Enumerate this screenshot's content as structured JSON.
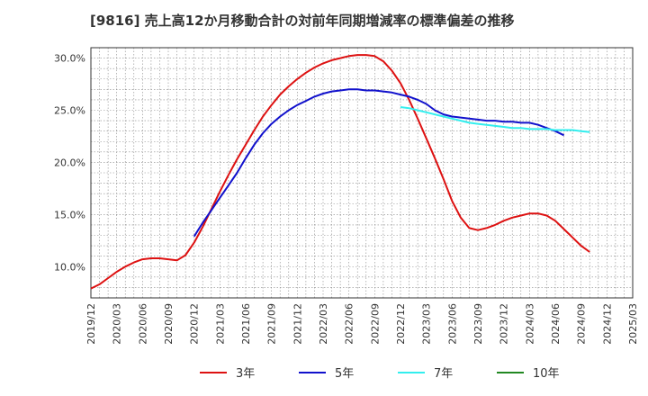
{
  "chart_data": {
    "type": "line",
    "title": "[9816]  売上高12か月移動合計の対前年同期増減率の標準偏差の推移",
    "xlabel": "",
    "ylabel": "",
    "ylim": [
      7.0,
      31.0
    ],
    "y_ticks": [
      10.0,
      15.0,
      20.0,
      25.0,
      30.0
    ],
    "y_tick_labels": [
      "10.0%",
      "15.0%",
      "20.0%",
      "25.0%",
      "30.0%"
    ],
    "x_tick_labels": [
      "2019/12",
      "2020/03",
      "2020/06",
      "2020/09",
      "2020/12",
      "2021/03",
      "2021/06",
      "2021/09",
      "2021/12",
      "2022/03",
      "2022/06",
      "2022/09",
      "2022/12",
      "2023/03",
      "2023/06",
      "2023/09",
      "2023/12",
      "2024/03",
      "2024/06",
      "2024/09",
      "2024/12",
      "2025/03"
    ],
    "grid": true,
    "legend_position": "bottom",
    "series": [
      {
        "name": "3年",
        "color": "#dd1111",
        "points": [
          [
            "2019/12",
            7.9
          ],
          [
            "2020/01",
            8.3
          ],
          [
            "2020/02",
            8.9
          ],
          [
            "2020/03",
            9.5
          ],
          [
            "2020/04",
            10.0
          ],
          [
            "2020/05",
            10.4
          ],
          [
            "2020/06",
            10.7
          ],
          [
            "2020/07",
            10.8
          ],
          [
            "2020/08",
            10.8
          ],
          [
            "2020/09",
            10.7
          ],
          [
            "2020/10",
            10.6
          ],
          [
            "2020/11",
            11.1
          ],
          [
            "2020/12",
            12.3
          ],
          [
            "2021/01",
            13.8
          ],
          [
            "2021/02",
            15.5
          ],
          [
            "2021/03",
            17.2
          ],
          [
            "2021/04",
            18.8
          ],
          [
            "2021/05",
            20.3
          ],
          [
            "2021/06",
            21.7
          ],
          [
            "2021/07",
            23.1
          ],
          [
            "2021/08",
            24.4
          ],
          [
            "2021/09",
            25.5
          ],
          [
            "2021/10",
            26.5
          ],
          [
            "2021/11",
            27.3
          ],
          [
            "2021/12",
            28.0
          ],
          [
            "2022/01",
            28.6
          ],
          [
            "2022/02",
            29.1
          ],
          [
            "2022/03",
            29.5
          ],
          [
            "2022/04",
            29.8
          ],
          [
            "2022/05",
            30.0
          ],
          [
            "2022/06",
            30.2
          ],
          [
            "2022/07",
            30.3
          ],
          [
            "2022/08",
            30.3
          ],
          [
            "2022/09",
            30.2
          ],
          [
            "2022/10",
            29.7
          ],
          [
            "2022/11",
            28.8
          ],
          [
            "2022/12",
            27.6
          ],
          [
            "2023/01",
            26.0
          ],
          [
            "2023/02",
            24.2
          ],
          [
            "2023/03",
            22.3
          ],
          [
            "2023/04",
            20.4
          ],
          [
            "2023/05",
            18.4
          ],
          [
            "2023/06",
            16.3
          ],
          [
            "2023/07",
            14.7
          ],
          [
            "2023/08",
            13.7
          ],
          [
            "2023/09",
            13.5
          ],
          [
            "2023/10",
            13.7
          ],
          [
            "2023/11",
            14.0
          ],
          [
            "2023/12",
            14.4
          ],
          [
            "2024/01",
            14.7
          ],
          [
            "2024/02",
            14.9
          ],
          [
            "2024/03",
            15.1
          ],
          [
            "2024/04",
            15.1
          ],
          [
            "2024/05",
            14.9
          ],
          [
            "2024/06",
            14.4
          ],
          [
            "2024/07",
            13.6
          ],
          [
            "2024/08",
            12.8
          ],
          [
            "2024/09",
            12.0
          ],
          [
            "2024/10",
            11.4
          ]
        ]
      },
      {
        "name": "5年",
        "color": "#1111cc",
        "points": [
          [
            "2020/12",
            12.9
          ],
          [
            "2021/01",
            14.2
          ],
          [
            "2021/02",
            15.4
          ],
          [
            "2021/03",
            16.6
          ],
          [
            "2021/04",
            17.8
          ],
          [
            "2021/05",
            19.0
          ],
          [
            "2021/06",
            20.4
          ],
          [
            "2021/07",
            21.7
          ],
          [
            "2021/08",
            22.8
          ],
          [
            "2021/09",
            23.7
          ],
          [
            "2021/10",
            24.4
          ],
          [
            "2021/11",
            25.0
          ],
          [
            "2021/12",
            25.5
          ],
          [
            "2022/01",
            25.9
          ],
          [
            "2022/02",
            26.3
          ],
          [
            "2022/03",
            26.6
          ],
          [
            "2022/04",
            26.8
          ],
          [
            "2022/05",
            26.9
          ],
          [
            "2022/06",
            27.0
          ],
          [
            "2022/07",
            27.0
          ],
          [
            "2022/08",
            26.9
          ],
          [
            "2022/09",
            26.9
          ],
          [
            "2022/10",
            26.8
          ],
          [
            "2022/11",
            26.7
          ],
          [
            "2022/12",
            26.5
          ],
          [
            "2023/01",
            26.3
          ],
          [
            "2023/02",
            26.0
          ],
          [
            "2023/03",
            25.6
          ],
          [
            "2023/04",
            25.0
          ],
          [
            "2023/05",
            24.6
          ],
          [
            "2023/06",
            24.4
          ],
          [
            "2023/07",
            24.3
          ],
          [
            "2023/08",
            24.2
          ],
          [
            "2023/09",
            24.1
          ],
          [
            "2023/10",
            24.0
          ],
          [
            "2023/11",
            24.0
          ],
          [
            "2023/12",
            23.9
          ],
          [
            "2024/01",
            23.9
          ],
          [
            "2024/02",
            23.8
          ],
          [
            "2024/03",
            23.8
          ],
          [
            "2024/04",
            23.6
          ],
          [
            "2024/05",
            23.3
          ],
          [
            "2024/06",
            23.0
          ],
          [
            "2024/07",
            22.6
          ]
        ]
      },
      {
        "name": "7年",
        "color": "#33eeee",
        "points": [
          [
            "2022/12",
            25.3
          ],
          [
            "2023/01",
            25.2
          ],
          [
            "2023/02",
            25.0
          ],
          [
            "2023/03",
            24.8
          ],
          [
            "2023/04",
            24.6
          ],
          [
            "2023/05",
            24.4
          ],
          [
            "2023/06",
            24.2
          ],
          [
            "2023/07",
            24.0
          ],
          [
            "2023/08",
            23.8
          ],
          [
            "2023/09",
            23.7
          ],
          [
            "2023/10",
            23.6
          ],
          [
            "2023/11",
            23.5
          ],
          [
            "2023/12",
            23.4
          ],
          [
            "2024/01",
            23.3
          ],
          [
            "2024/02",
            23.3
          ],
          [
            "2024/03",
            23.2
          ],
          [
            "2024/04",
            23.2
          ],
          [
            "2024/05",
            23.2
          ],
          [
            "2024/06",
            23.1
          ],
          [
            "2024/07",
            23.1
          ],
          [
            "2024/08",
            23.1
          ],
          [
            "2024/09",
            23.0
          ],
          [
            "2024/10",
            22.9
          ]
        ]
      },
      {
        "name": "10年",
        "color": "#228822",
        "points": []
      }
    ]
  }
}
